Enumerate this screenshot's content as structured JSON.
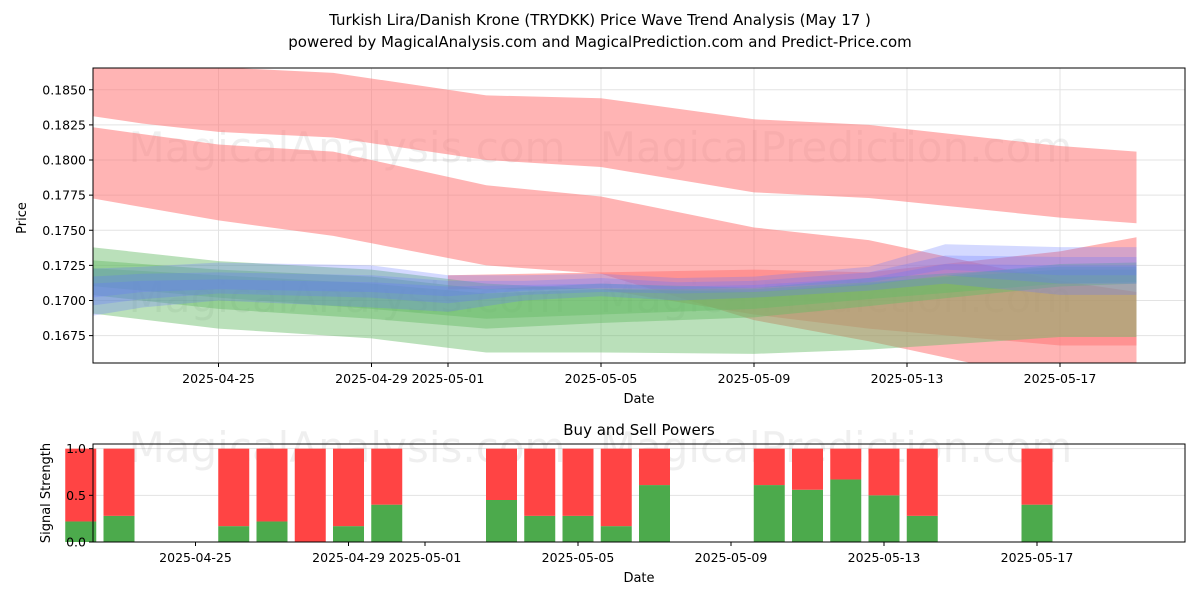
{
  "title_line1": "Turkish Lira/Danish Krone (TRYDKK) Price Wave Trend Analysis (May 17 )",
  "title_line2": "powered by MagicalAnalysis.com and MagicalPrediction.com and Predict-Price.com",
  "watermark_left": "MagicalAnalysis.com",
  "watermark_right": "MagicalPrediction.com",
  "colors": {
    "sell_band": "#ff7777",
    "buy_band": "#66bb66",
    "price_band": "#6677ff",
    "buy_bar": "#4caa4c",
    "sell_bar": "#ff4444"
  },
  "chart_data": [
    {
      "type": "area",
      "xlabel": "Date",
      "ylabel": "Price",
      "ylim": [
        0.16555,
        0.18655
      ],
      "xlim": [
        "2025-04-20",
        "2025-05-20"
      ],
      "yticks": [
        "0.1675",
        "0.1700",
        "0.1725",
        "0.1750",
        "0.1775",
        "0.1800",
        "0.1825",
        "0.1850"
      ],
      "xticks": [
        "2025-04-25",
        "2025-04-29",
        "2025-05-01",
        "2025-05-05",
        "2025-05-09",
        "2025-05-13",
        "2025-05-17"
      ],
      "grid": true,
      "series": [
        {
          "style": "sell",
          "x": [
            "2025-04-20",
            "2025-04-23",
            "2025-04-25",
            "2025-04-28",
            "2025-05-02",
            "2025-05-05",
            "2025-05-09",
            "2025-05-12",
            "2025-05-17",
            "2025-05-19"
          ],
          "upper": [
            0.187,
            0.1868,
            0.1866,
            0.1862,
            0.1846,
            0.1844,
            0.1829,
            0.1825,
            0.181,
            0.1806
          ],
          "lower": [
            0.1838,
            0.1826,
            0.182,
            0.1816,
            0.18,
            0.1795,
            0.1777,
            0.1773,
            0.1759,
            0.1755
          ]
        },
        {
          "style": "sell",
          "x": [
            "2025-04-20",
            "2025-04-21",
            "2025-04-25",
            "2025-04-28",
            "2025-05-02",
            "2025-05-05",
            "2025-05-09",
            "2025-05-12",
            "2025-05-17",
            "2025-05-19"
          ],
          "upper": [
            0.182,
            0.1826,
            0.1811,
            0.1806,
            0.1782,
            0.1774,
            0.1752,
            0.1743,
            0.1714,
            0.1706
          ],
          "lower": [
            0.1782,
            0.1776,
            0.1757,
            0.1746,
            0.1725,
            0.1719,
            0.1686,
            0.1671,
            0.1642,
            0.1636
          ]
        },
        {
          "style": "sell",
          "x": [
            "2025-05-01",
            "2025-05-05",
            "2025-05-09",
            "2025-05-12",
            "2025-05-17",
            "2025-05-19"
          ],
          "upper": [
            0.1718,
            0.172,
            0.1722,
            0.172,
            0.1735,
            0.1745
          ],
          "lower": [
            0.1708,
            0.1708,
            0.169,
            0.168,
            0.1668,
            0.1668
          ]
        },
        {
          "style": "buy",
          "x": [
            "2025-04-21",
            "2025-04-25",
            "2025-04-29",
            "2025-05-02",
            "2025-05-05",
            "2025-05-09",
            "2025-05-12",
            "2025-05-17",
            "2025-05-19"
          ],
          "upper": [
            0.174,
            0.1728,
            0.1722,
            0.1712,
            0.1708,
            0.1706,
            0.1712,
            0.1726,
            0.1727
          ],
          "lower": [
            0.1693,
            0.168,
            0.1673,
            0.1663,
            0.1663,
            0.1662,
            0.1665,
            0.1674,
            0.1674
          ]
        },
        {
          "style": "buy",
          "x": [
            "2025-04-21",
            "2025-04-25",
            "2025-04-29",
            "2025-05-02",
            "2025-05-05",
            "2025-05-09",
            "2025-05-12",
            "2025-05-17",
            "2025-05-19"
          ],
          "upper": [
            0.173,
            0.1722,
            0.1717,
            0.1708,
            0.1712,
            0.1709,
            0.1716,
            0.1724,
            0.1724
          ],
          "lower": [
            0.1706,
            0.1694,
            0.1687,
            0.168,
            0.1684,
            0.1688,
            0.1696,
            0.171,
            0.1712
          ]
        },
        {
          "style": "buy",
          "x": [
            "2025-04-21",
            "2025-04-25",
            "2025-04-29",
            "2025-05-02",
            "2025-05-05",
            "2025-05-09",
            "2025-05-12",
            "2025-05-17",
            "2025-05-19"
          ],
          "upper": [
            0.1724,
            0.1718,
            0.1712,
            0.1705,
            0.1708,
            0.1708,
            0.1713,
            0.1722,
            0.1722
          ],
          "lower": [
            0.1712,
            0.1702,
            0.1694,
            0.1687,
            0.169,
            0.1694,
            0.1701,
            0.1712,
            0.1713
          ]
        },
        {
          "style": "price",
          "x": [
            "2025-04-21",
            "2025-04-23",
            "2025-04-25",
            "2025-04-29",
            "2025-05-01",
            "2025-05-03",
            "2025-05-05",
            "2025-05-07",
            "2025-05-09",
            "2025-05-12",
            "2025-05-14",
            "2025-05-17",
            "2025-05-19"
          ],
          "upper": [
            0.1722,
            0.1724,
            0.1727,
            0.1725,
            0.1718,
            0.1718,
            0.1719,
            0.1716,
            0.1717,
            0.1724,
            0.174,
            0.1738,
            0.1738
          ],
          "lower": [
            0.1686,
            0.1695,
            0.17,
            0.1695,
            0.1692,
            0.17,
            0.1703,
            0.17,
            0.1702,
            0.1707,
            0.1712,
            0.1704,
            0.1704
          ]
        },
        {
          "style": "price",
          "x": [
            "2025-04-21",
            "2025-04-23",
            "2025-04-25",
            "2025-04-29",
            "2025-05-01",
            "2025-05-03",
            "2025-05-05",
            "2025-05-07",
            "2025-05-09",
            "2025-05-12",
            "2025-05-14",
            "2025-05-17",
            "2025-05-19"
          ],
          "upper": [
            0.1716,
            0.1719,
            0.172,
            0.1718,
            0.1714,
            0.1714,
            0.1716,
            0.1713,
            0.1714,
            0.172,
            0.1732,
            0.1731,
            0.1731
          ],
          "lower": [
            0.1694,
            0.1701,
            0.1705,
            0.1702,
            0.1698,
            0.1704,
            0.1706,
            0.1705,
            0.1706,
            0.1711,
            0.1718,
            0.1712,
            0.1712
          ]
        },
        {
          "style": "price",
          "x": [
            "2025-04-21",
            "2025-04-23",
            "2025-04-25",
            "2025-04-29",
            "2025-05-01",
            "2025-05-03",
            "2025-05-05",
            "2025-05-07",
            "2025-05-09",
            "2025-05-12",
            "2025-05-14",
            "2025-05-17",
            "2025-05-19"
          ],
          "upper": [
            0.1711,
            0.1714,
            0.1715,
            0.1713,
            0.171,
            0.1711,
            0.1712,
            0.171,
            0.1711,
            0.1716,
            0.1726,
            0.1725,
            0.1725
          ],
          "lower": [
            0.17,
            0.1706,
            0.1708,
            0.1706,
            0.1703,
            0.1707,
            0.1709,
            0.1708,
            0.1709,
            0.1713,
            0.1722,
            0.1718,
            0.1718
          ]
        }
      ]
    },
    {
      "type": "bar",
      "title": "Buy and Sell Powers",
      "xlabel": "Date",
      "ylabel": "Signal Strength",
      "ylim": [
        0,
        1.05
      ],
      "yticks": [
        "0.0",
        "0.5",
        "1.0"
      ],
      "xticks": [
        "2025-04-25",
        "2025-04-29",
        "2025-05-01",
        "2025-05-05",
        "2025-05-09",
        "2025-05-13",
        "2025-05-17"
      ],
      "categories": [
        "2025-04-22",
        "2025-04-23",
        "2025-04-26",
        "2025-04-27",
        "2025-04-28",
        "2025-04-29",
        "2025-04-30",
        "2025-05-03",
        "2025-05-04",
        "2025-05-05",
        "2025-05-06",
        "2025-05-07",
        "2025-05-10",
        "2025-05-11",
        "2025-05-12",
        "2025-05-13",
        "2025-05-14",
        "2025-05-17"
      ],
      "series": [
        {
          "name": "buy",
          "values": [
            0.22,
            0.28,
            0.17,
            0.22,
            0.0,
            0.17,
            0.4,
            0.45,
            0.28,
            0.28,
            0.17,
            0.61,
            0.61,
            0.56,
            0.67,
            0.5,
            0.28,
            0.4
          ]
        },
        {
          "name": "sell",
          "values": [
            0.78,
            0.72,
            0.83,
            0.78,
            1.0,
            0.83,
            0.6,
            0.55,
            0.72,
            0.72,
            0.83,
            0.39,
            0.39,
            0.44,
            0.33,
            0.5,
            0.72,
            0.6
          ]
        }
      ]
    }
  ]
}
